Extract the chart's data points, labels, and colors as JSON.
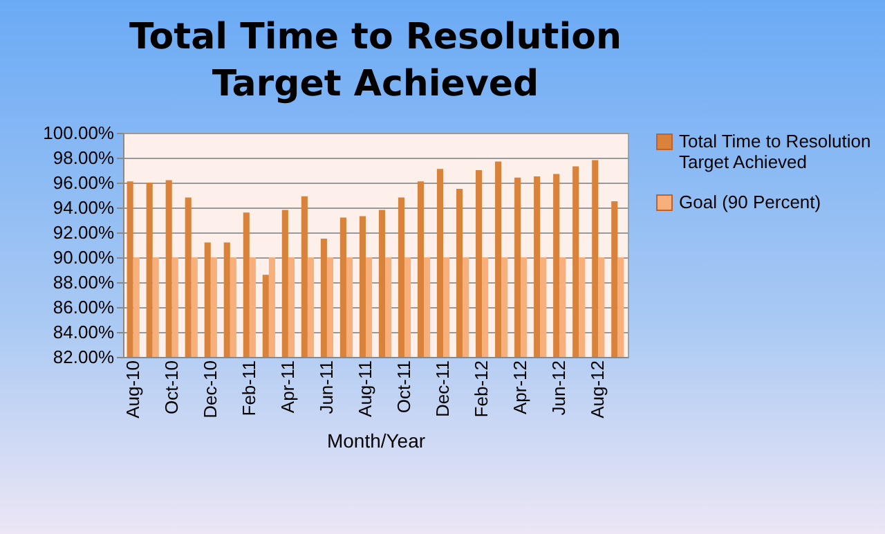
{
  "chart_data": {
    "type": "bar",
    "title": "Total Time to Resolution Target Achieved",
    "xlabel": "Month/Year",
    "categories": [
      "Aug-10",
      null,
      "Oct-10",
      null,
      "Dec-10",
      null,
      "Feb-11",
      null,
      "Apr-11",
      null,
      "Jun-11",
      null,
      "Aug-11",
      null,
      "Oct-11",
      null,
      "Dec-11",
      null,
      "Feb-12",
      null,
      "Apr-12",
      null,
      "Jun-12",
      null,
      "Aug-12",
      null
    ],
    "series": [
      {
        "name": "Total Time to Resolution Target Achieved",
        "color": "#d9823b",
        "values": [
          96.1,
          96.0,
          96.2,
          94.8,
          91.2,
          91.2,
          93.6,
          88.6,
          93.8,
          94.9,
          91.5,
          93.2,
          93.3,
          93.8,
          94.8,
          96.1,
          97.1,
          95.5,
          97.0,
          97.7,
          96.4,
          96.5,
          96.7,
          97.3,
          97.8,
          94.5
        ]
      },
      {
        "name": "Goal (90 Percent)",
        "color": "#f7b07c",
        "values": [
          90,
          90,
          90,
          90,
          90,
          90,
          90,
          90,
          90,
          90,
          90,
          90,
          90,
          90,
          90,
          90,
          90,
          90,
          90,
          90,
          90,
          90,
          90,
          90,
          90,
          90
        ]
      }
    ],
    "ylim": [
      82,
      100
    ],
    "yticks": [
      {
        "value": 82,
        "label": "82.00%"
      },
      {
        "value": 84,
        "label": "84.00%"
      },
      {
        "value": 86,
        "label": "86.00%"
      },
      {
        "value": 88,
        "label": "88.00%"
      },
      {
        "value": 90,
        "label": "90.00%"
      },
      {
        "value": 92,
        "label": "92.00%"
      },
      {
        "value": 94,
        "label": "94.00%"
      },
      {
        "value": 96,
        "label": "96.00%"
      },
      {
        "value": 98,
        "label": "98.00%"
      },
      {
        "value": 100,
        "label": "100.00%"
      }
    ],
    "grid": "y",
    "legend": "right"
  }
}
